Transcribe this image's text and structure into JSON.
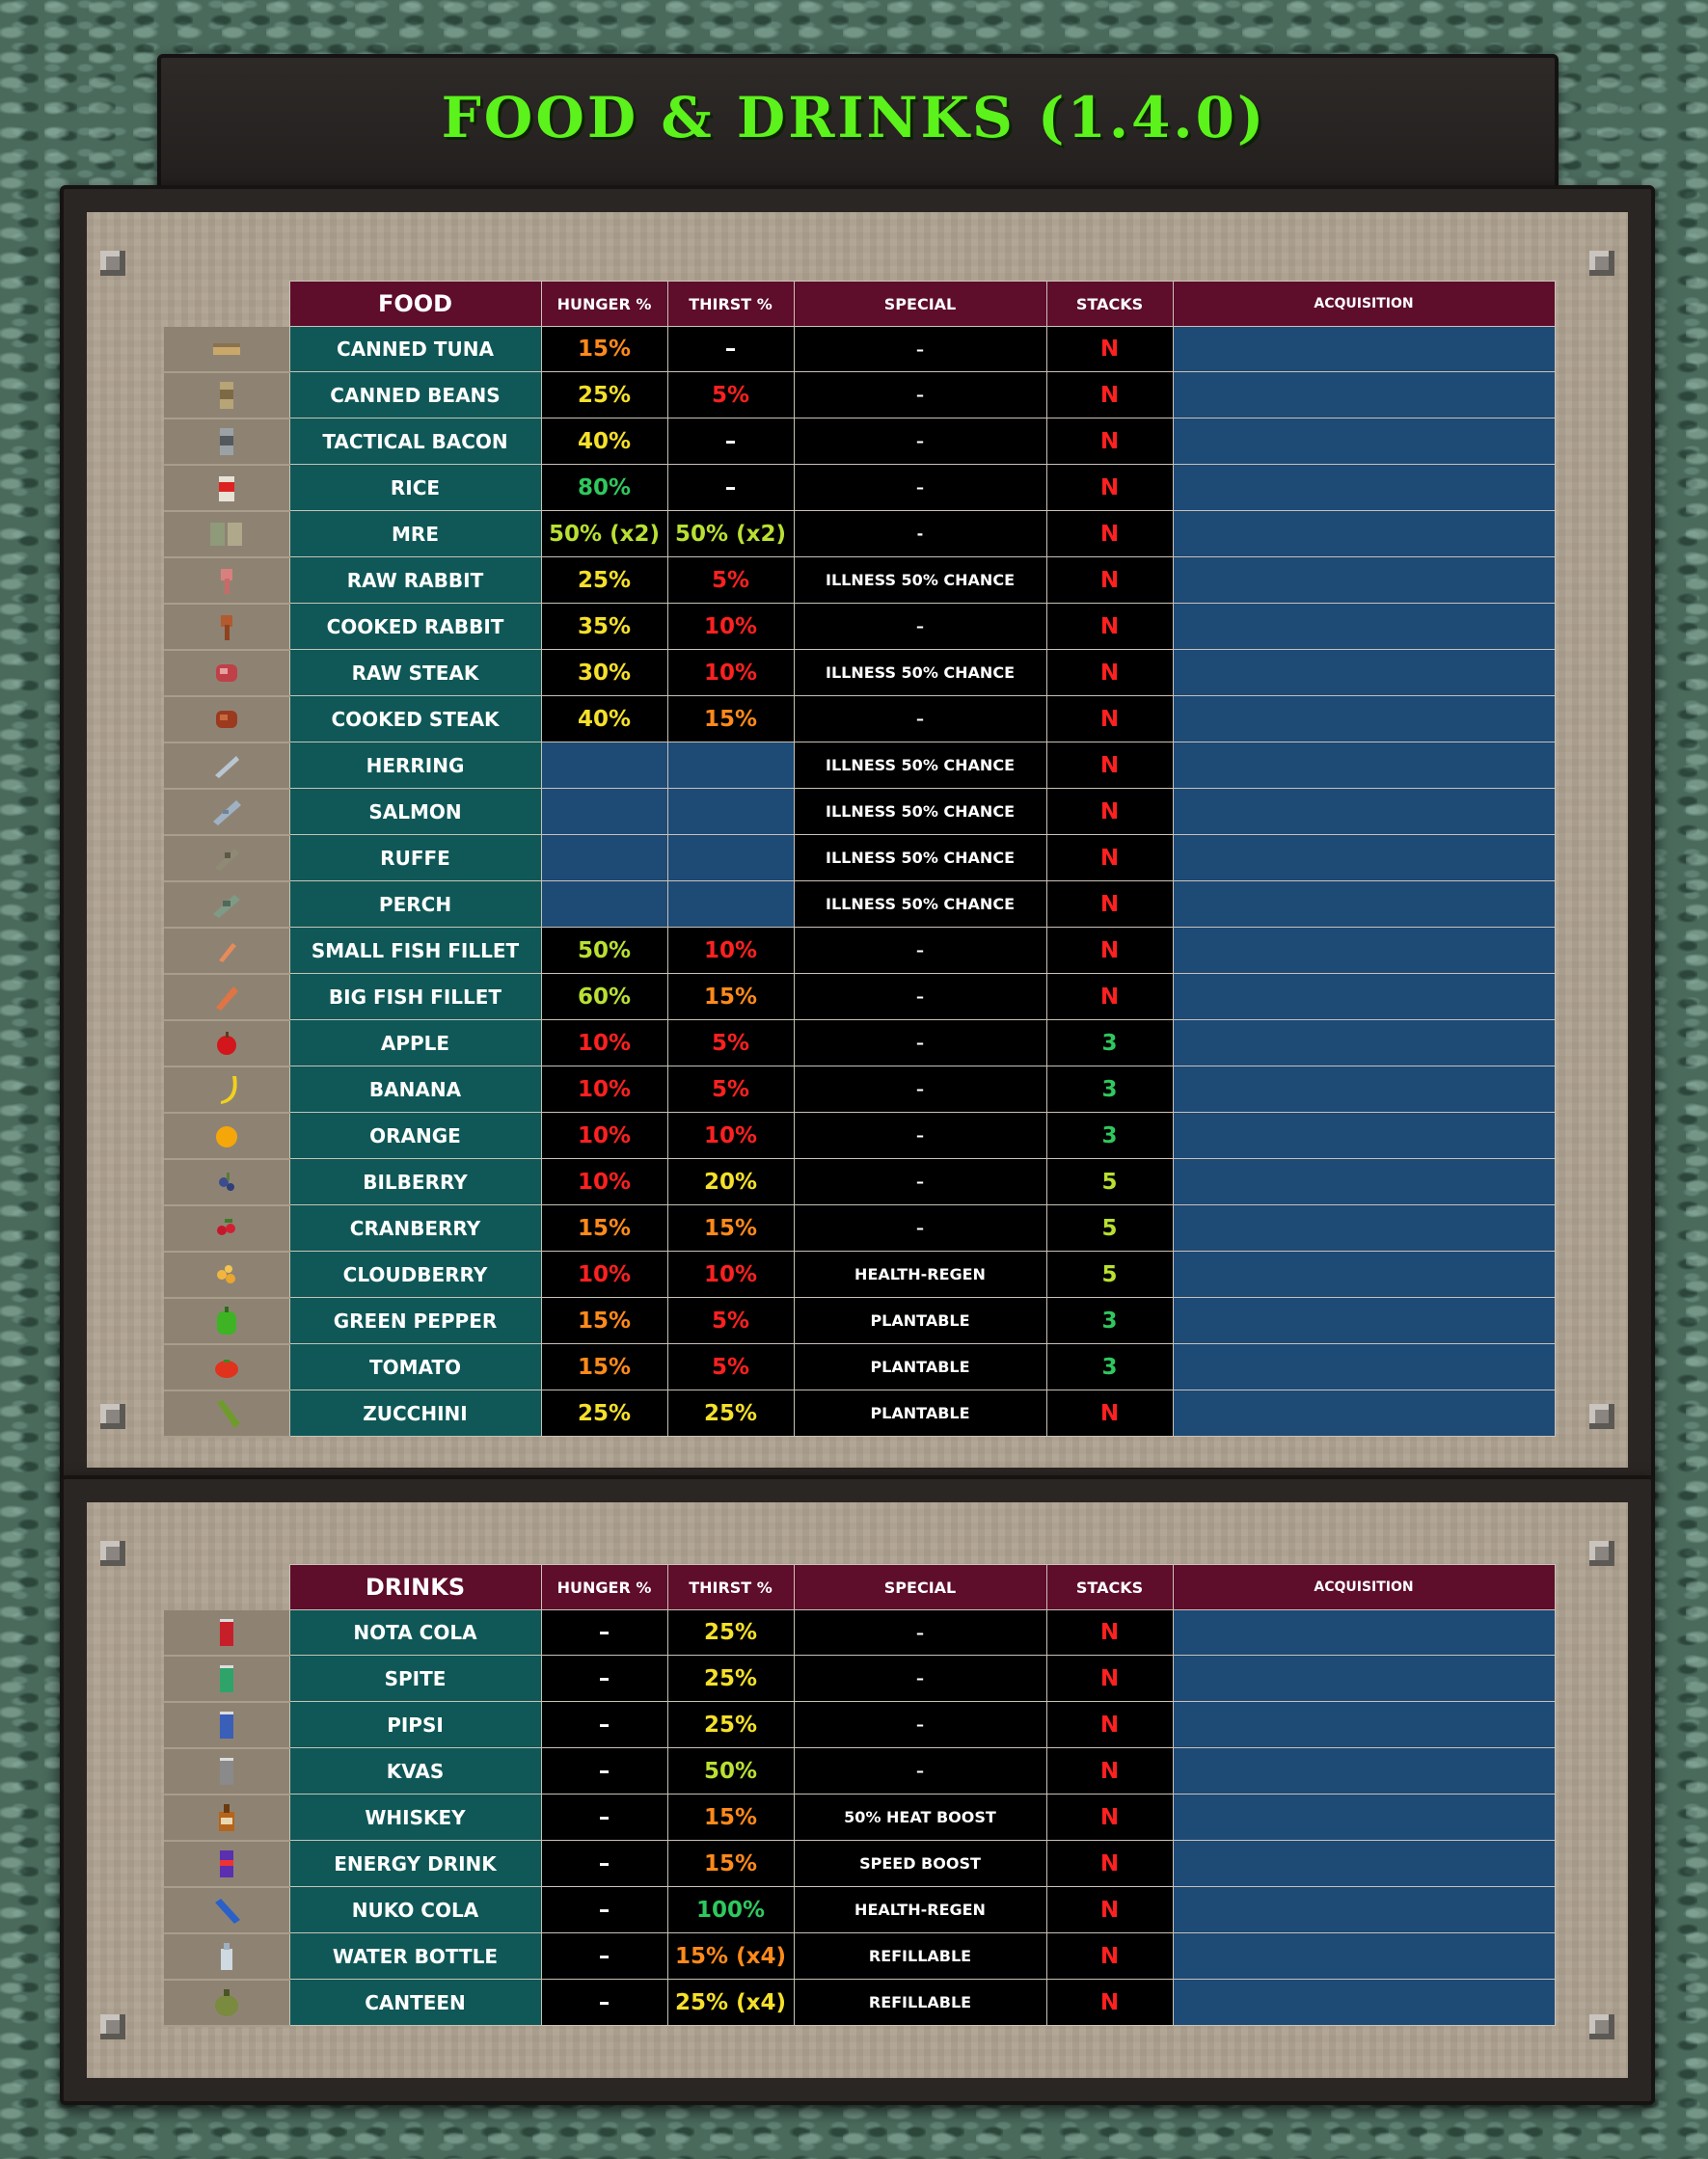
{
  "title": "FOOD & DRINKS (1.4.0)",
  "colors": {
    "title_green": "#5cf21b",
    "header_maroon": "#5e0d2b",
    "name_teal": "#0f5857",
    "acq_blue": "#1e4a76",
    "red": "#ff2020",
    "orange": "#ff8a1a",
    "yellow": "#f5e02a",
    "lime": "#b9e032",
    "green": "#2fc85e"
  },
  "food_table": {
    "headers": [
      "FOOD",
      "HUNGER %",
      "THIRST %",
      "SPECIAL",
      "STACKS",
      "ACQUISITION"
    ],
    "rows": [
      {
        "icon": "tuna-can-icon",
        "name": "CANNED TUNA",
        "hunger": "15%",
        "hunger_color": "orange",
        "thirst": "–",
        "thirst_color": "white",
        "special": "–",
        "stacks": "N",
        "stacks_color": "red"
      },
      {
        "icon": "bean-can-icon",
        "name": "CANNED BEANS",
        "hunger": "25%",
        "hunger_color": "yellow",
        "thirst": "5%",
        "thirst_color": "red",
        "special": "–",
        "stacks": "N",
        "stacks_color": "red"
      },
      {
        "icon": "bacon-can-icon",
        "name": "TACTICAL BACON",
        "hunger": "40%",
        "hunger_color": "yellow",
        "thirst": "–",
        "thirst_color": "white",
        "special": "–",
        "stacks": "N",
        "stacks_color": "red"
      },
      {
        "icon": "rice-bag-icon",
        "name": "RICE",
        "hunger": "80%",
        "hunger_color": "green",
        "thirst": "–",
        "thirst_color": "white",
        "special": "–",
        "stacks": "N",
        "stacks_color": "red"
      },
      {
        "icon": "mre-pack-icon",
        "name": "MRE",
        "hunger": "50% (x2)",
        "hunger_color": "lime",
        "thirst": "50% (x2)",
        "thirst_color": "lime",
        "special": "-",
        "stacks": "N",
        "stacks_color": "red"
      },
      {
        "icon": "raw-rabbit-icon",
        "name": "RAW RABBIT",
        "hunger": "25%",
        "hunger_color": "yellow",
        "thirst": "5%",
        "thirst_color": "red",
        "special": "ILLNESS 50% CHANCE",
        "stacks": "N",
        "stacks_color": "red"
      },
      {
        "icon": "cooked-rabbit-icon",
        "name": "COOKED RABBIT",
        "hunger": "35%",
        "hunger_color": "yellow",
        "thirst": "10%",
        "thirst_color": "red",
        "special": "–",
        "stacks": "N",
        "stacks_color": "red"
      },
      {
        "icon": "raw-steak-icon",
        "name": "RAW STEAK",
        "hunger": "30%",
        "hunger_color": "yellow",
        "thirst": "10%",
        "thirst_color": "red",
        "special": "ILLNESS 50% CHANCE",
        "stacks": "N",
        "stacks_color": "red"
      },
      {
        "icon": "cooked-steak-icon",
        "name": "COOKED STEAK",
        "hunger": "40%",
        "hunger_color": "yellow",
        "thirst": "15%",
        "thirst_color": "orange",
        "special": "–",
        "stacks": "N",
        "stacks_color": "red"
      },
      {
        "icon": "herring-icon",
        "name": "HERRING",
        "hunger": "",
        "hunger_color": "blank",
        "thirst": "",
        "thirst_color": "blank",
        "special": "ILLNESS 50% CHANCE",
        "stacks": "N",
        "stacks_color": "red"
      },
      {
        "icon": "salmon-icon",
        "name": "SALMON",
        "hunger": "",
        "hunger_color": "blank",
        "thirst": "",
        "thirst_color": "blank",
        "special": "ILLNESS 50% CHANCE",
        "stacks": "N",
        "stacks_color": "red"
      },
      {
        "icon": "ruffe-icon",
        "name": "RUFFE",
        "hunger": "",
        "hunger_color": "blank",
        "thirst": "",
        "thirst_color": "blank",
        "special": "ILLNESS 50% CHANCE",
        "stacks": "N",
        "stacks_color": "red"
      },
      {
        "icon": "perch-icon",
        "name": "PERCH",
        "hunger": "",
        "hunger_color": "blank",
        "thirst": "",
        "thirst_color": "blank",
        "special": "ILLNESS 50% CHANCE",
        "stacks": "N",
        "stacks_color": "red"
      },
      {
        "icon": "small-fillet-icon",
        "name": "SMALL FISH FILLET",
        "hunger": "50%",
        "hunger_color": "lime",
        "thirst": "10%",
        "thirst_color": "red",
        "special": "–",
        "stacks": "N",
        "stacks_color": "red"
      },
      {
        "icon": "big-fillet-icon",
        "name": "BIG FISH FILLET",
        "hunger": "60%",
        "hunger_color": "lime",
        "thirst": "15%",
        "thirst_color": "orange",
        "special": "–",
        "stacks": "N",
        "stacks_color": "red"
      },
      {
        "icon": "apple-icon",
        "name": "APPLE",
        "hunger": "10%",
        "hunger_color": "red",
        "thirst": "5%",
        "thirst_color": "red",
        "special": "–",
        "stacks": "3",
        "stacks_color": "green"
      },
      {
        "icon": "banana-icon",
        "name": "BANANA",
        "hunger": "10%",
        "hunger_color": "red",
        "thirst": "5%",
        "thirst_color": "red",
        "special": "–",
        "stacks": "3",
        "stacks_color": "green"
      },
      {
        "icon": "orange-icon",
        "name": "ORANGE",
        "hunger": "10%",
        "hunger_color": "red",
        "thirst": "10%",
        "thirst_color": "red",
        "special": "–",
        "stacks": "3",
        "stacks_color": "green"
      },
      {
        "icon": "bilberry-icon",
        "name": "BILBERRY",
        "hunger": "10%",
        "hunger_color": "red",
        "thirst": "20%",
        "thirst_color": "yellow",
        "special": "–",
        "stacks": "5",
        "stacks_color": "lime"
      },
      {
        "icon": "cranberry-icon",
        "name": "CRANBERRY",
        "hunger": "15%",
        "hunger_color": "orange",
        "thirst": "15%",
        "thirst_color": "orange",
        "special": "–",
        "stacks": "5",
        "stacks_color": "lime"
      },
      {
        "icon": "cloudberry-icon",
        "name": "CLOUDBERRY",
        "hunger": "10%",
        "hunger_color": "red",
        "thirst": "10%",
        "thirst_color": "red",
        "special": "HEALTH-REGEN",
        "stacks": "5",
        "stacks_color": "lime"
      },
      {
        "icon": "green-pepper-icon",
        "name": "GREEN PEPPER",
        "hunger": "15%",
        "hunger_color": "orange",
        "thirst": "5%",
        "thirst_color": "red",
        "special": "PLANTABLE",
        "stacks": "3",
        "stacks_color": "green"
      },
      {
        "icon": "tomato-icon",
        "name": "TOMATO",
        "hunger": "15%",
        "hunger_color": "orange",
        "thirst": "5%",
        "thirst_color": "red",
        "special": "PLANTABLE",
        "stacks": "3",
        "stacks_color": "green"
      },
      {
        "icon": "zucchini-icon",
        "name": "ZUCCHINI",
        "hunger": "25%",
        "hunger_color": "yellow",
        "thirst": "25%",
        "thirst_color": "yellow",
        "special": "PLANTABLE",
        "stacks": "N",
        "stacks_color": "red"
      }
    ]
  },
  "drinks_table": {
    "headers": [
      "DRINKS",
      "HUNGER %",
      "THIRST %",
      "SPECIAL",
      "STACKS",
      "ACQUISITION"
    ],
    "rows": [
      {
        "icon": "cola-can-icon",
        "name": "NOTA COLA",
        "hunger": "–",
        "hunger_color": "white",
        "thirst": "25%",
        "thirst_color": "yellow",
        "special": "–",
        "stacks": "N",
        "stacks_color": "red"
      },
      {
        "icon": "spite-can-icon",
        "name": "SPITE",
        "hunger": "–",
        "hunger_color": "white",
        "thirst": "25%",
        "thirst_color": "yellow",
        "special": "–",
        "stacks": "N",
        "stacks_color": "red"
      },
      {
        "icon": "pipsi-can-icon",
        "name": "PIPSI",
        "hunger": "–",
        "hunger_color": "white",
        "thirst": "25%",
        "thirst_color": "yellow",
        "special": "–",
        "stacks": "N",
        "stacks_color": "red"
      },
      {
        "icon": "kvas-can-icon",
        "name": "KVAS",
        "hunger": "–",
        "hunger_color": "white",
        "thirst": "50%",
        "thirst_color": "lime",
        "special": "–",
        "stacks": "N",
        "stacks_color": "red"
      },
      {
        "icon": "whiskey-bottle-icon",
        "name": "WHISKEY",
        "hunger": "–",
        "hunger_color": "white",
        "thirst": "15%",
        "thirst_color": "orange",
        "special": "50% HEAT BOOST",
        "stacks": "N",
        "stacks_color": "red"
      },
      {
        "icon": "energy-drink-icon",
        "name": "ENERGY DRINK",
        "hunger": "–",
        "hunger_color": "white",
        "thirst": "15%",
        "thirst_color": "orange",
        "special": "SPEED BOOST",
        "stacks": "N",
        "stacks_color": "red"
      },
      {
        "icon": "nuko-cola-icon",
        "name": "NUKO COLA",
        "hunger": "–",
        "hunger_color": "white",
        "thirst": "100%",
        "thirst_color": "green",
        "special": "HEALTH-REGEN",
        "stacks": "N",
        "stacks_color": "red"
      },
      {
        "icon": "water-bottle-icon",
        "name": "WATER BOTTLE",
        "hunger": "–",
        "hunger_color": "white",
        "thirst": "15% (x4)",
        "thirst_color": "orange",
        "special": "REFILLABLE",
        "stacks": "N",
        "stacks_color": "red"
      },
      {
        "icon": "canteen-icon",
        "name": "CANTEEN",
        "hunger": "–",
        "hunger_color": "white",
        "thirst": "25% (x4)",
        "thirst_color": "yellow",
        "special": "REFILLABLE",
        "stacks": "N",
        "stacks_color": "red"
      }
    ]
  }
}
